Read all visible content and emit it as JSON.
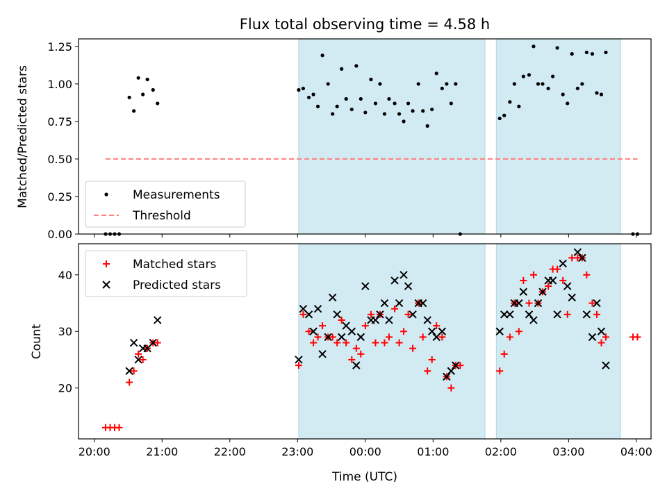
{
  "chart_data": {
    "title": "Flux total observing time = 4.58 h",
    "xlabel": "Time (UTC)",
    "x_ticks": [
      {
        "t": 0,
        "label": "20:00"
      },
      {
        "t": 60,
        "label": "21:00"
      },
      {
        "t": 120,
        "label": "22:00"
      },
      {
        "t": 180,
        "label": "23:00"
      },
      {
        "t": 240,
        "label": "00:00"
      },
      {
        "t": 300,
        "label": "01:00"
      },
      {
        "t": 360,
        "label": "02:00"
      },
      {
        "t": 420,
        "label": "03:00"
      },
      {
        "t": 480,
        "label": "04:00"
      }
    ],
    "xlim": [
      -14,
      493
    ],
    "shaded_intervals": [
      [
        181,
        346
      ],
      [
        356,
        466
      ]
    ],
    "shade_color": "#add8e6",
    "panels": [
      {
        "type": "scatter",
        "ylabel": "Matched/Predicted stars",
        "ylim": [
          0,
          1.3
        ],
        "y_ticks": [
          0.0,
          0.25,
          0.5,
          0.75,
          1.0,
          1.25
        ],
        "y_tick_labels": [
          "0.00",
          "0.25",
          "0.50",
          "0.75",
          "1.00",
          "1.25"
        ],
        "legend_position": "lower-left",
        "series": [
          {
            "name": "Measurements",
            "marker": "dot",
            "color": "#000000",
            "points": [
              [
                10,
                0
              ],
              [
                14,
                0
              ],
              [
                18,
                0
              ],
              [
                22,
                0
              ],
              [
                31,
                0.91
              ],
              [
                35,
                0.82
              ],
              [
                39,
                1.04
              ],
              [
                43,
                0.93
              ],
              [
                47,
                1.03
              ],
              [
                52,
                0.96
              ],
              [
                56,
                0.87
              ],
              [
                181,
                0.96
              ],
              [
                185,
                0.97
              ],
              [
                190,
                0.91
              ],
              [
                194,
                0.93
              ],
              [
                198,
                0.85
              ],
              [
                202,
                1.19
              ],
              [
                207,
                1.0
              ],
              [
                211,
                0.8
              ],
              [
                215,
                0.85
              ],
              [
                219,
                1.1
              ],
              [
                223,
                0.9
              ],
              [
                228,
                0.83
              ],
              [
                232,
                1.12
              ],
              [
                236,
                0.9
              ],
              [
                240,
                0.81
              ],
              [
                245,
                1.03
              ],
              [
                249,
                0.87
              ],
              [
                253,
                1.0
              ],
              [
                257,
                0.8
              ],
              [
                261,
                0.9
              ],
              [
                266,
                0.87
              ],
              [
                270,
                0.8
              ],
              [
                274,
                0.75
              ],
              [
                278,
                0.87
              ],
              [
                282,
                0.82
              ],
              [
                287,
                1.0
              ],
              [
                291,
                0.82
              ],
              [
                295,
                0.72
              ],
              [
                299,
                0.83
              ],
              [
                303,
                1.07
              ],
              [
                308,
                0.97
              ],
              [
                312,
                1.0
              ],
              [
                316,
                0.87
              ],
              [
                320,
                1.0
              ],
              [
                324,
                0
              ],
              [
                359,
                0.77
              ],
              [
                363,
                0.79
              ],
              [
                368,
                0.88
              ],
              [
                372,
                1.0
              ],
              [
                376,
                0.85
              ],
              [
                380,
                1.05
              ],
              [
                385,
                1.06
              ],
              [
                389,
                1.25
              ],
              [
                393,
                1.0
              ],
              [
                397,
                1.0
              ],
              [
                402,
                0.97
              ],
              [
                406,
                1.05
              ],
              [
                410,
                1.24
              ],
              [
                415,
                0.93
              ],
              [
                419,
                0.87
              ],
              [
                423,
                1.2
              ],
              [
                428,
                0.97
              ],
              [
                432,
                1.0
              ],
              [
                436,
                1.21
              ],
              [
                441,
                1.2
              ],
              [
                445,
                0.94
              ],
              [
                449,
                0.93
              ],
              [
                453,
                1.21
              ],
              [
                477,
                0
              ],
              [
                481,
                0
              ]
            ]
          },
          {
            "name": "Threshold",
            "marker": "dashed-line",
            "color": "#ff7f7f",
            "points": [
              [
                10,
                0.5
              ],
              [
                481,
                0.5
              ]
            ]
          }
        ]
      },
      {
        "type": "scatter",
        "ylabel": "Count",
        "ylim": [
          11,
          45.5
        ],
        "y_ticks": [
          20,
          30,
          40
        ],
        "y_tick_labels": [
          "20",
          "30",
          "40"
        ],
        "legend_position": "upper-left",
        "series": [
          {
            "name": "Matched stars",
            "marker": "plus",
            "color": "#ff0000",
            "points": [
              [
                10,
                13
              ],
              [
                14,
                13
              ],
              [
                18,
                13
              ],
              [
                22,
                13
              ],
              [
                31,
                21
              ],
              [
                35,
                23
              ],
              [
                39,
                26
              ],
              [
                43,
                25
              ],
              [
                47,
                27
              ],
              [
                52,
                28
              ],
              [
                56,
                28
              ],
              [
                181,
                24
              ],
              [
                185,
                33
              ],
              [
                190,
                30
              ],
              [
                194,
                28
              ],
              [
                198,
                29
              ],
              [
                202,
                31
              ],
              [
                207,
                29
              ],
              [
                211,
                29
              ],
              [
                215,
                28
              ],
              [
                219,
                32
              ],
              [
                223,
                28
              ],
              [
                228,
                25
              ],
              [
                232,
                27
              ],
              [
                236,
                26
              ],
              [
                240,
                31
              ],
              [
                245,
                33
              ],
              [
                249,
                28
              ],
              [
                253,
                33
              ],
              [
                257,
                28
              ],
              [
                261,
                29
              ],
              [
                266,
                34
              ],
              [
                270,
                28
              ],
              [
                274,
                30
              ],
              [
                278,
                33
              ],
              [
                282,
                27
              ],
              [
                287,
                35
              ],
              [
                291,
                29
              ],
              [
                295,
                23
              ],
              [
                299,
                25
              ],
              [
                303,
                31
              ],
              [
                308,
                29
              ],
              [
                312,
                22
              ],
              [
                316,
                20
              ],
              [
                320,
                24
              ],
              [
                324,
                24
              ],
              [
                359,
                23
              ],
              [
                363,
                26
              ],
              [
                368,
                29
              ],
              [
                372,
                35
              ],
              [
                376,
                30
              ],
              [
                380,
                39
              ],
              [
                385,
                35
              ],
              [
                389,
                40
              ],
              [
                393,
                35
              ],
              [
                397,
                37
              ],
              [
                402,
                38
              ],
              [
                406,
                41
              ],
              [
                410,
                41
              ],
              [
                415,
                39
              ],
              [
                419,
                33
              ],
              [
                423,
                43
              ],
              [
                428,
                43
              ],
              [
                432,
                43
              ],
              [
                436,
                40
              ],
              [
                441,
                35
              ],
              [
                445,
                33
              ],
              [
                449,
                28
              ],
              [
                453,
                29
              ],
              [
                477,
                29
              ],
              [
                481,
                29
              ]
            ]
          },
          {
            "name": "Predicted stars",
            "marker": "x",
            "color": "#000000",
            "points": [
              [
                31,
                23
              ],
              [
                35,
                28
              ],
              [
                39,
                25
              ],
              [
                43,
                27
              ],
              [
                47,
                27
              ],
              [
                52,
                28
              ],
              [
                56,
                32
              ],
              [
                181,
                25
              ],
              [
                185,
                34
              ],
              [
                190,
                33
              ],
              [
                194,
                30
              ],
              [
                198,
                34
              ],
              [
                202,
                26
              ],
              [
                207,
                29
              ],
              [
                211,
                36
              ],
              [
                215,
                33
              ],
              [
                219,
                29
              ],
              [
                223,
                31
              ],
              [
                228,
                30
              ],
              [
                232,
                24
              ],
              [
                236,
                29
              ],
              [
                240,
                38
              ],
              [
                245,
                32
              ],
              [
                249,
                32
              ],
              [
                253,
                33
              ],
              [
                257,
                35
              ],
              [
                261,
                32
              ],
              [
                266,
                39
              ],
              [
                270,
                35
              ],
              [
                274,
                40
              ],
              [
                278,
                38
              ],
              [
                282,
                33
              ],
              [
                287,
                35
              ],
              [
                291,
                35
              ],
              [
                295,
                32
              ],
              [
                299,
                30
              ],
              [
                303,
                29
              ],
              [
                308,
                30
              ],
              [
                312,
                22
              ],
              [
                316,
                23
              ],
              [
                320,
                24
              ],
              [
                359,
                30
              ],
              [
                363,
                33
              ],
              [
                368,
                33
              ],
              [
                372,
                35
              ],
              [
                376,
                35
              ],
              [
                380,
                37
              ],
              [
                385,
                33
              ],
              [
                389,
                32
              ],
              [
                393,
                35
              ],
              [
                397,
                37
              ],
              [
                402,
                39
              ],
              [
                406,
                39
              ],
              [
                410,
                33
              ],
              [
                415,
                42
              ],
              [
                419,
                38
              ],
              [
                423,
                36
              ],
              [
                428,
                44
              ],
              [
                432,
                43
              ],
              [
                436,
                33
              ],
              [
                441,
                29
              ],
              [
                445,
                35
              ],
              [
                449,
                30
              ],
              [
                453,
                24
              ]
            ]
          }
        ]
      }
    ]
  }
}
